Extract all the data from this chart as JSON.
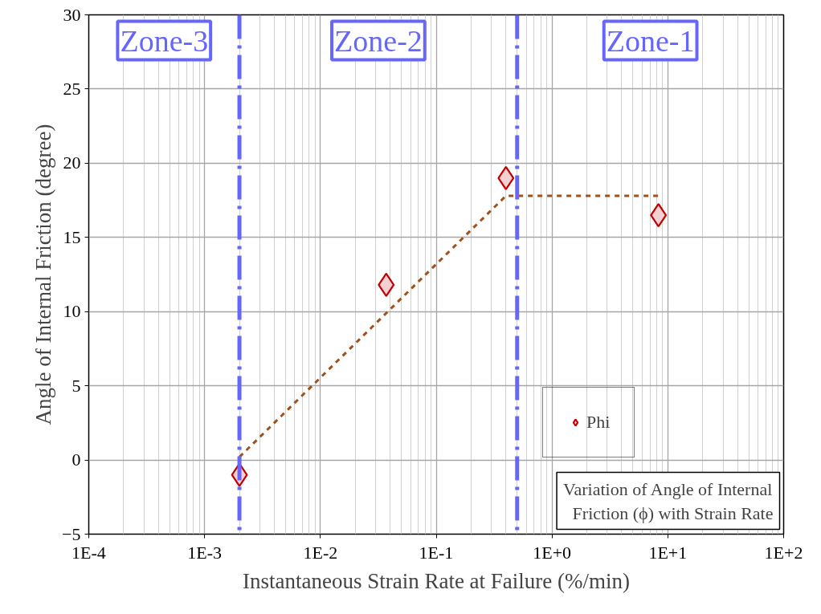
{
  "chart_data": {
    "type": "scatter",
    "xlabel": "Instantaneous Strain Rate at Failure (%/min)",
    "ylabel": "Angle of Internal Friction (degree)",
    "log": "x",
    "xlim": [
      0.0001,
      100
    ],
    "ylim": [
      -5,
      30
    ],
    "xticks": [
      {
        "value": 0.0001,
        "label": "1E-4"
      },
      {
        "value": 0.001,
        "label": "1E-3"
      },
      {
        "value": 0.01,
        "label": "1E-2"
      },
      {
        "value": 0.1,
        "label": "1E-1"
      },
      {
        "value": 1,
        "label": "1E+0"
      },
      {
        "value": 10,
        "label": "1E+1"
      },
      {
        "value": 100,
        "label": "1E+2"
      }
    ],
    "yticks": [
      -5,
      0,
      5,
      10,
      15,
      20,
      25,
      30
    ],
    "grid": true,
    "legend": "bottom right",
    "marker": "diamond",
    "series": [
      {
        "name": "Phi",
        "color": "#c00000",
        "x": [
          0.002,
          0.037,
          0.4,
          8.3
        ],
        "values": [
          -1.0,
          11.8,
          19.0,
          16.5
        ]
      },
      {
        "type": "line",
        "color": "#a0501a",
        "line_style": "dashed",
        "marker": "none",
        "x": [
          0.002,
          0.4,
          8.3
        ],
        "values": [
          0.2,
          17.8,
          17.8
        ]
      }
    ],
    "ref_lines": [
      {
        "axis": "x",
        "value": 0.002,
        "color": "#6666ff",
        "line_style": "dashed"
      },
      {
        "axis": "x",
        "value": 0.5,
        "color": "#6666ff",
        "line_style": "dashed"
      }
    ],
    "annotations": [
      "Zone-3",
      "Zone-2",
      "Zone-1",
      "Variation of Angle of Internal\nFriction (ϕ) with Strain Rate"
    ]
  }
}
